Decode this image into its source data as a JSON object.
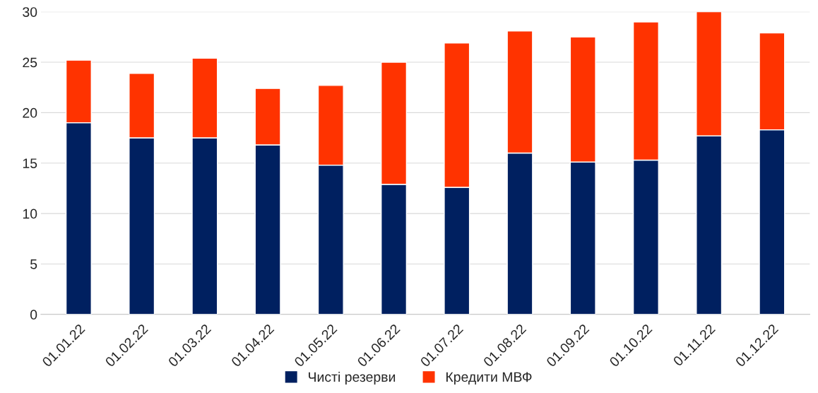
{
  "chart_data": {
    "type": "bar",
    "stacked": true,
    "categories": [
      "01.01.22",
      "01.02.22",
      "01.03.22",
      "01.04.22",
      "01.05.22",
      "01.06.22",
      "01.07.22",
      "01.08.22",
      "01.09.22",
      "01.10.22",
      "01.11.22",
      "01.12.22"
    ],
    "series": [
      {
        "name": "Чисті резерви",
        "color": "#002060",
        "values": [
          19.0,
          17.5,
          17.5,
          16.8,
          14.8,
          12.9,
          12.6,
          16.0,
          15.1,
          15.3,
          17.7,
          18.3
        ]
      },
      {
        "name": "Кредити МВФ",
        "color": "#ff3300",
        "values": [
          6.2,
          6.4,
          7.9,
          5.6,
          7.9,
          12.1,
          14.3,
          12.1,
          12.4,
          13.7,
          12.3,
          9.6
        ]
      }
    ],
    "ylim": [
      0,
      30
    ],
    "yticks": [
      0,
      5,
      10,
      15,
      20,
      25,
      30
    ],
    "grid": "y",
    "legend": "bottom"
  }
}
